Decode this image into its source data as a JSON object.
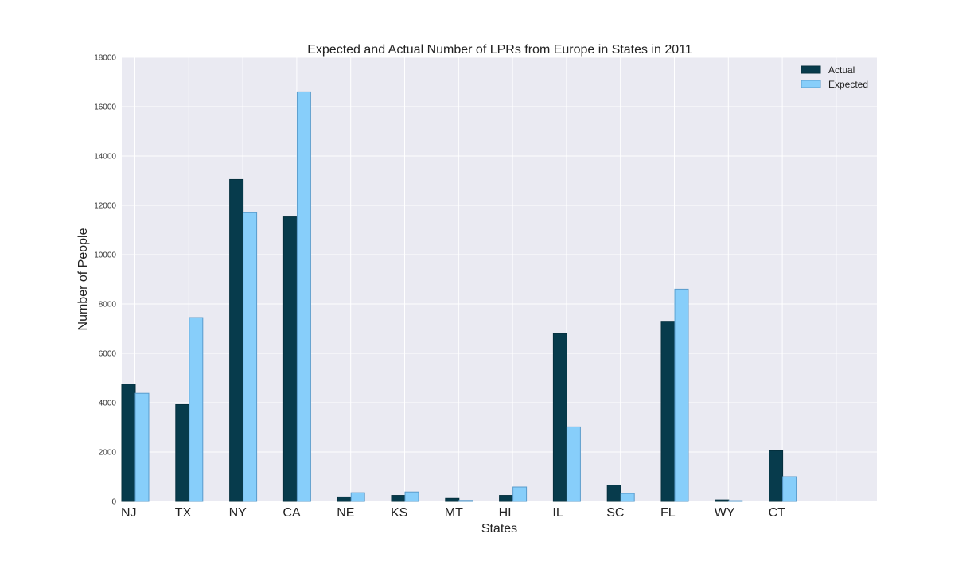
{
  "chart_data": {
    "type": "bar",
    "title": "Expected and Actual Number of LPRs from Europe in States in 2011",
    "xlabel": "States",
    "ylabel": "Number of People",
    "categories": [
      "NJ",
      "TX",
      "NY",
      "CA",
      "NE",
      "KS",
      "MT",
      "HI",
      "IL",
      "SC",
      "FL",
      "WY",
      "CT"
    ],
    "series": [
      {
        "name": "Actual",
        "color": "#073b4c",
        "values": [
          4750,
          3920,
          13050,
          11530,
          180,
          240,
          120,
          240,
          6800,
          660,
          7300,
          60,
          2050
        ]
      },
      {
        "name": "Expected",
        "color": "#87cefa",
        "values": [
          4380,
          7450,
          11700,
          16600,
          350,
          380,
          40,
          580,
          3020,
          320,
          8600,
          30,
          1000
        ]
      }
    ],
    "ylim": [
      0,
      18000
    ],
    "yticks": [
      "0",
      "2000",
      "4000",
      "6000",
      "8000",
      "10000",
      "12000",
      "14000",
      "16000",
      "18000"
    ],
    "grid": true,
    "legend_position": "top-right",
    "background_color": "#eaeaf2",
    "grid_color": "#ffffff"
  }
}
